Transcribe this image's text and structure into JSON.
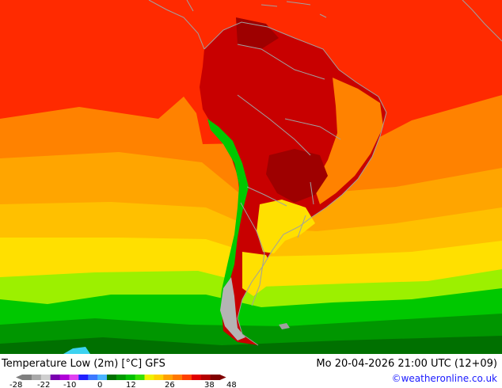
{
  "header": {
    "title": "Temperature Low (2m) [°C] GFS",
    "datetime": "Mo 20-04-2026 21:00 UTC (12+09)",
    "credit": "©weatheronline.co.uk"
  },
  "legend": {
    "tick_labels": [
      "-28",
      "-22",
      "-10",
      "0",
      "12",
      "26",
      "38",
      "48"
    ],
    "colors": [
      "#7f7f7f",
      "#a8a8a8",
      "#cfcfcf",
      "#7a00b0",
      "#b000d8",
      "#e040f0",
      "#2020ff",
      "#3c78ff",
      "#4ab4ff",
      "#007000",
      "#009a00",
      "#00c000",
      "#38e000",
      "#f0f000",
      "#ffd000",
      "#ffa000",
      "#ff7800",
      "#ff4000",
      "#e00000",
      "#b40000",
      "#800000"
    ]
  },
  "map": {
    "colors": {
      "sea_hot": "#ff2a00",
      "orange": "#ff8200",
      "light_orange": "#ffa500",
      "yellow_orange": "#ffc000",
      "yellow": "#ffe000",
      "lime": "#9cf000",
      "green": "#00c800",
      "dark_green": "#009600",
      "deep_green": "#007000",
      "cyan": "#3cd2f0",
      "land_dark_red": "#c80000",
      "land_maroon": "#9e0000",
      "andes_grey": "#b4b4b4",
      "border": "#a0a0a0"
    }
  }
}
